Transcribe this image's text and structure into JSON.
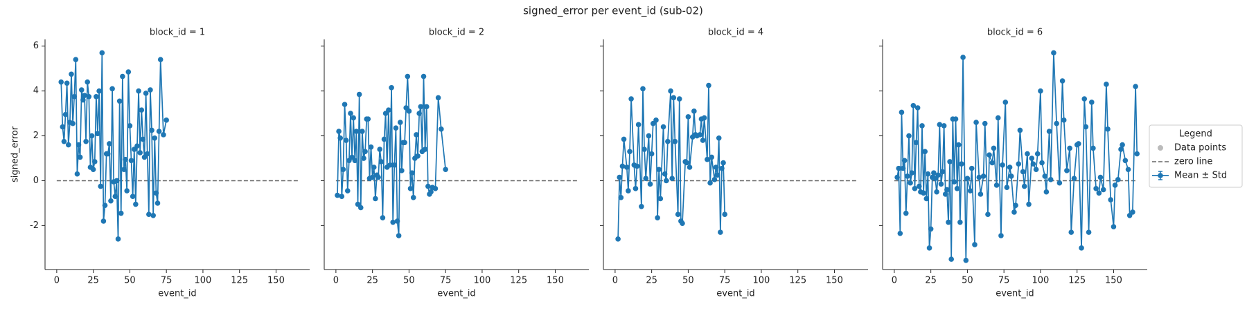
{
  "title": "signed_error per event_id (sub-02)",
  "legend": {
    "title": "Legend",
    "entries": [
      {
        "label": "Data points",
        "color": "#bbbbbb",
        "kind": "marker"
      },
      {
        "label": "zero line",
        "color": "#666666",
        "kind": "dashed"
      },
      {
        "label": "Mean ± Std",
        "color": "#1f77b4",
        "kind": "errorbar"
      }
    ]
  },
  "chart_data": [
    {
      "type": "line",
      "title": "block_id = 1",
      "xlabel": "event_id",
      "ylabel": "signed_error",
      "color": "#1f77b4",
      "xlim": [
        -8,
        173
      ],
      "ylim": [
        -3.96,
        6.3
      ],
      "xticks": [
        0,
        25,
        50,
        75,
        100,
        125,
        150
      ],
      "yticks": [
        -2,
        0,
        2,
        4,
        6
      ],
      "zero_line": {
        "y": 0,
        "x": [
          0,
          165
        ]
      },
      "x": [
        3,
        4,
        5,
        6,
        7,
        8,
        9,
        10,
        11,
        12,
        13,
        14,
        15,
        16,
        17,
        18,
        19,
        20,
        21,
        22,
        23,
        24,
        25,
        26,
        27,
        28,
        29,
        30,
        31,
        32,
        33,
        34,
        35,
        36,
        37,
        38,
        39,
        40,
        41,
        42,
        43,
        44,
        45,
        46,
        47,
        48,
        49,
        50,
        51,
        52,
        53,
        54,
        55,
        56,
        57,
        58,
        59,
        60,
        61,
        62,
        63,
        64,
        65,
        66,
        67,
        68,
        69,
        70,
        71,
        73,
        75
      ],
      "values": [
        4.4,
        2.4,
        1.75,
        2.95,
        4.35,
        1.6,
        2.6,
        4.75,
        2.55,
        3.75,
        5.4,
        0.3,
        1.6,
        1.05,
        4.05,
        3.6,
        3.8,
        1.75,
        4.4,
        3.75,
        0.6,
        2.0,
        0.5,
        0.85,
        3.75,
        2.1,
        4.0,
        -0.25,
        5.7,
        -1.8,
        -1.1,
        1.2,
        1.2,
        1.65,
        -0.9,
        4.1,
        -0.05,
        -0.7,
        0.0,
        -2.6,
        3.55,
        -1.45,
        4.65,
        0.5,
        0.95,
        -0.45,
        4.85,
        2.45,
        0.9,
        -0.7,
        1.4,
        -1.05,
        1.55,
        4.0,
        1.25,
        3.15,
        1.85,
        1.05,
        3.9,
        1.2,
        -1.5,
        4.05,
        2.25,
        -1.55,
        1.9,
        -0.55,
        -1.0,
        2.2,
        5.4,
        2.05,
        2.7
      ]
    },
    {
      "type": "line",
      "title": "block_id = 2",
      "xlabel": "event_id",
      "color": "#1f77b4",
      "xlim": [
        -8,
        173
      ],
      "ylim": [
        -3.96,
        6.3
      ],
      "xticks": [
        0,
        25,
        50,
        75,
        100,
        125,
        150
      ],
      "yticks": [
        -2,
        0,
        2,
        4,
        6
      ],
      "zero_line": {
        "y": 0,
        "x": [
          0,
          165
        ]
      },
      "x": [
        1,
        2,
        3,
        4,
        5,
        6,
        7,
        8,
        9,
        10,
        11,
        12,
        13,
        14,
        15,
        16,
        17,
        18,
        19,
        20,
        21,
        22,
        23,
        24,
        25,
        26,
        27,
        28,
        29,
        30,
        31,
        32,
        33,
        34,
        35,
        36,
        37,
        38,
        39,
        40,
        41,
        42,
        43,
        44,
        45,
        46,
        47,
        48,
        49,
        50,
        51,
        52,
        53,
        54,
        55,
        56,
        57,
        58,
        59,
        60,
        61,
        62,
        63,
        64,
        65,
        66,
        68,
        70,
        72,
        75
      ],
      "values": [
        -0.65,
        2.2,
        1.9,
        -0.7,
        0.5,
        3.4,
        1.8,
        -0.45,
        0.9,
        3.0,
        1.05,
        2.8,
        0.9,
        2.2,
        -1.05,
        3.85,
        -1.2,
        2.2,
        1.0,
        1.3,
        2.75,
        2.75,
        0.1,
        1.5,
        0.15,
        0.6,
        -0.8,
        0.25,
        0.15,
        1.4,
        0.85,
        -1.65,
        1.85,
        3.0,
        0.6,
        3.15,
        0.7,
        4.15,
        -1.85,
        0.7,
        2.35,
        -1.8,
        -2.45,
        2.6,
        0.45,
        1.7,
        1.7,
        3.25,
        4.65,
        3.1,
        -0.35,
        0.35,
        -0.75,
        1.0,
        2.05,
        1.1,
        3.0,
        3.3,
        1.3,
        4.65,
        1.4,
        3.3,
        -0.25,
        -0.6,
        -0.5,
        -0.3,
        -0.35,
        3.7,
        2.3,
        0.5
      ]
    },
    {
      "type": "line",
      "title": "block_id = 4",
      "xlabel": "event_id",
      "color": "#1f77b4",
      "xlim": [
        -8,
        173
      ],
      "ylim": [
        -3.96,
        6.3
      ],
      "xticks": [
        0,
        25,
        50,
        75,
        100,
        125,
        150
      ],
      "yticks": [
        -2,
        0,
        2,
        4,
        6
      ],
      "zero_line": {
        "y": 0,
        "x": [
          0,
          165
        ]
      },
      "x": [
        2,
        3,
        4,
        5,
        6,
        8,
        9,
        10,
        11,
        13,
        14,
        15,
        16,
        18,
        19,
        20,
        21,
        23,
        24,
        25,
        26,
        28,
        29,
        30,
        31,
        33,
        34,
        35,
        36,
        38,
        39,
        40,
        41,
        43,
        44,
        45,
        46,
        48,
        49,
        50,
        51,
        53,
        54,
        55,
        56,
        58,
        59,
        60,
        61,
        63,
        64,
        65,
        66,
        68,
        69,
        70,
        71,
        72,
        73,
        74,
        75
      ],
      "values": [
        -2.6,
        0.15,
        -0.75,
        0.65,
        1.85,
        0.6,
        -0.45,
        1.3,
        3.65,
        0.7,
        -0.35,
        0.65,
        2.5,
        -1.15,
        4.1,
        1.4,
        0.1,
        2.0,
        -0.15,
        1.2,
        2.55,
        2.7,
        -1.65,
        0.5,
        -0.8,
        2.4,
        0.3,
        0.0,
        1.75,
        4.0,
        0.1,
        3.7,
        1.75,
        -1.5,
        3.65,
        -1.8,
        -1.9,
        0.85,
        0.8,
        2.85,
        0.6,
        1.95,
        3.1,
        2.05,
        2.0,
        2.05,
        2.75,
        1.8,
        2.8,
        0.95,
        4.25,
        -0.1,
        1.05,
        0.05,
        0.6,
        0.25,
        1.9,
        -2.3,
        0.55,
        0.8,
        -1.5
      ]
    },
    {
      "type": "line",
      "title": "block_id = 6",
      "xlabel": "event_id",
      "color": "#1f77b4",
      "xlim": [
        -8,
        173
      ],
      "ylim": [
        -3.96,
        6.3
      ],
      "xticks": [
        0,
        25,
        50,
        75,
        100,
        125,
        150
      ],
      "yticks": [
        -2,
        0,
        2,
        4,
        6
      ],
      "zero_line": {
        "y": 0,
        "x": [
          0,
          165
        ]
      },
      "x": [
        2,
        3,
        4,
        5,
        6,
        7,
        8,
        9,
        10,
        11,
        12,
        13,
        14,
        15,
        16,
        17,
        18,
        19,
        20,
        21,
        22,
        23,
        24,
        25,
        26,
        27,
        28,
        29,
        30,
        31,
        32,
        33,
        34,
        35,
        36,
        37,
        38,
        39,
        40,
        41,
        42,
        43,
        44,
        45,
        46,
        47,
        49,
        50,
        52,
        53,
        55,
        56,
        58,
        59,
        61,
        62,
        64,
        65,
        67,
        68,
        70,
        71,
        73,
        74,
        76,
        77,
        79,
        80,
        82,
        83,
        85,
        86,
        88,
        89,
        91,
        92,
        94,
        95,
        97,
        98,
        100,
        101,
        103,
        104,
        106,
        107,
        109,
        111,
        113,
        115,
        116,
        118,
        120,
        121,
        123,
        125,
        126,
        128,
        130,
        131,
        133,
        135,
        136,
        138,
        140,
        141,
        143,
        145,
        146,
        148,
        150,
        151,
        153,
        155,
        156,
        158,
        160,
        161,
        163,
        165,
        166
      ],
      "values": [
        0.15,
        0.55,
        -2.35,
        3.05,
        0.55,
        0.9,
        -1.45,
        0.2,
        2.0,
        -0.1,
        0.35,
        3.35,
        -0.35,
        1.7,
        3.25,
        -0.25,
        -0.5,
        2.45,
        -0.55,
        1.3,
        -0.8,
        0.3,
        -3.0,
        -2.15,
        0.15,
        0.35,
        0.1,
        -0.5,
        0.25,
        2.5,
        -0.15,
        0.4,
        2.45,
        -0.6,
        -0.4,
        -1.85,
        0.85,
        -3.5,
        2.75,
        -0.05,
        2.75,
        -0.35,
        1.6,
        -1.85,
        0.75,
        5.5,
        -3.55,
        0.1,
        -0.45,
        0.55,
        -2.85,
        2.6,
        0.15,
        -0.6,
        0.2,
        2.55,
        -1.5,
        1.15,
        0.8,
        1.45,
        -0.2,
        2.8,
        -2.45,
        0.7,
        3.5,
        -0.3,
        0.6,
        0.2,
        -1.4,
        -1.1,
        0.75,
        2.25,
        0.4,
        -0.25,
        1.2,
        -1.05,
        1.0,
        0.75,
        0.5,
        1.2,
        4.0,
        0.8,
        0.2,
        -0.5,
        2.2,
        0.05,
        5.7,
        2.55,
        -0.1,
        4.45,
        2.7,
        0.45,
        1.45,
        -2.3,
        0.1,
        1.6,
        1.65,
        -3.0,
        3.65,
        2.4,
        -2.3,
        3.5,
        1.45,
        -0.35,
        -0.55,
        0.15,
        -0.4,
        4.3,
        2.3,
        -0.85,
        -2.05,
        -0.2,
        0.05,
        1.4,
        1.6,
        0.9,
        0.5,
        -1.55,
        -1.4,
        4.2,
        1.2
      ]
    }
  ]
}
